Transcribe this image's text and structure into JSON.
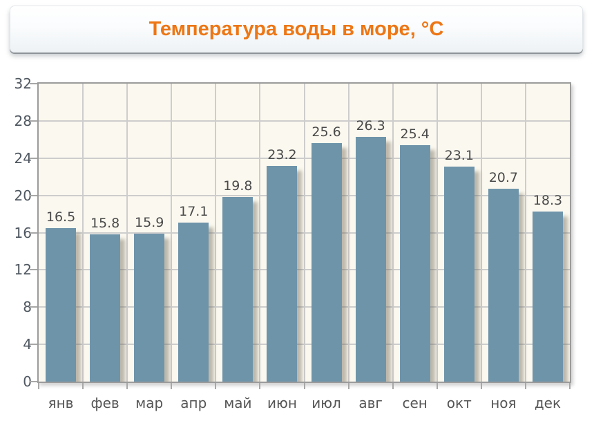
{
  "header": {
    "title": "Температура воды в море, °C"
  },
  "chart_data": {
    "type": "bar",
    "title": "Температура воды в море, °C",
    "categories": [
      "янв",
      "фев",
      "мар",
      "апр",
      "май",
      "июн",
      "июл",
      "авг",
      "сен",
      "окт",
      "ноя",
      "дек"
    ],
    "values": [
      16.5,
      15.8,
      15.9,
      17.1,
      19.8,
      23.2,
      25.6,
      26.3,
      25.4,
      23.1,
      20.7,
      18.3
    ],
    "value_labels": [
      "16.5",
      "15.8",
      "15.9",
      "17.1",
      "19.8",
      "23.2",
      "25.6",
      "26.3",
      "25.4",
      "23.1",
      "20.7",
      "18.3"
    ],
    "xlabel": "",
    "ylabel": "",
    "ylim": [
      0,
      32
    ],
    "yticks": [
      0,
      4,
      8,
      12,
      16,
      20,
      24,
      28,
      32
    ],
    "grid": true,
    "legend": null,
    "colors": {
      "bar": "#6e94aa",
      "plot_bg": "#fbf8ef",
      "grid_line": "#cdcdcd",
      "plot_border": "#9b9b9b",
      "title_text": "#ed7615",
      "value_label": "#4a4a4a",
      "axis_label": "#4f5760",
      "month_label": "#555555"
    }
  }
}
